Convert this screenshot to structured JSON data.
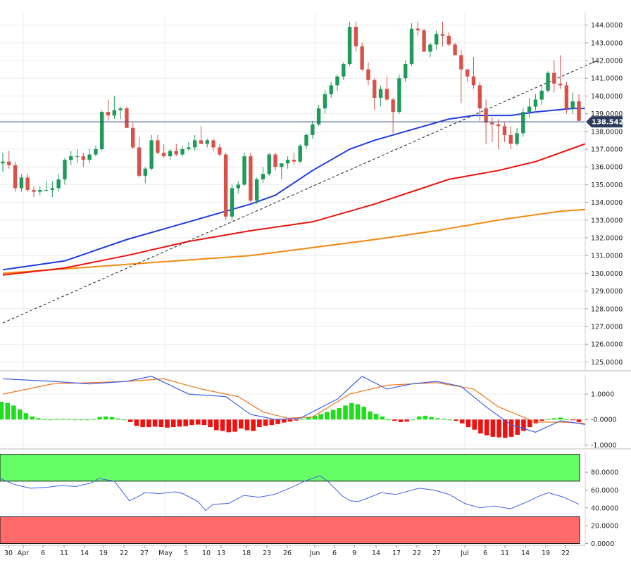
{
  "chart_data": [
    {
      "type": "candlestick",
      "panel": "price",
      "y_axis_ticks": [
        "144.0000",
        "143.0000",
        "142.0000",
        "141.0000",
        "140.0000",
        "139.0000",
        "138.0000",
        "137.0000",
        "136.0000",
        "135.0000",
        "134.0000",
        "133.0000",
        "132.0000",
        "131.0000",
        "130.0000",
        "129.0000",
        "128.0000",
        "127.0000",
        "126.0000",
        "125.0000"
      ],
      "ylim": [
        124.5,
        144.7
      ],
      "last_price_label": "138.5420",
      "last_price": 138.542,
      "colors": {
        "up": "#1e9a5a",
        "down": "#d8524a",
        "sma_fast": "#1f3ddd",
        "sma_mid": "#e8150f",
        "sma_slow": "#f5890f",
        "trendline": "#222222",
        "price_line": "#3a4f8f",
        "price_label_bg": "#2d3b5c"
      },
      "candles": [
        [
          136.2,
          136.8,
          135.7,
          136.3
        ],
        [
          136.3,
          136.9,
          135.9,
          136.1
        ],
        [
          136.1,
          136.3,
          134.6,
          134.8
        ],
        [
          134.8,
          135.6,
          134.6,
          135.4
        ],
        [
          135.4,
          135.6,
          134.6,
          134.7
        ],
        [
          134.7,
          134.9,
          134.3,
          134.6
        ],
        [
          134.6,
          134.9,
          134.4,
          134.7
        ],
        [
          134.7,
          135.2,
          134.6,
          134.7
        ],
        [
          134.7,
          135.2,
          134.3,
          134.8
        ],
        [
          134.8,
          135.6,
          134.6,
          135.3
        ],
        [
          135.3,
          136.5,
          135.0,
          136.4
        ],
        [
          136.4,
          136.9,
          136.1,
          136.6
        ],
        [
          136.6,
          137.0,
          136.2,
          136.6
        ],
        [
          136.6,
          136.8,
          136.0,
          136.4
        ],
        [
          136.4,
          137.0,
          136.2,
          136.7
        ],
        [
          136.7,
          137.2,
          136.6,
          137.0
        ],
        [
          137.0,
          139.2,
          136.9,
          139.1
        ],
        [
          139.1,
          139.8,
          138.6,
          138.9
        ],
        [
          138.9,
          140.0,
          138.7,
          139.2
        ],
        [
          139.2,
          139.4,
          138.7,
          139.3
        ],
        [
          139.3,
          139.4,
          138.4,
          138.2
        ],
        [
          138.2,
          138.5,
          137.0,
          137.1
        ],
        [
          137.1,
          137.7,
          135.4,
          135.5
        ],
        [
          135.5,
          136.0,
          135.1,
          135.9
        ],
        [
          135.9,
          137.8,
          135.8,
          137.5
        ],
        [
          137.5,
          137.8,
          136.7,
          136.8
        ],
        [
          136.8,
          137.3,
          136.5,
          136.6
        ],
        [
          136.6,
          137.0,
          136.4,
          136.9
        ],
        [
          136.9,
          137.3,
          136.6,
          136.7
        ],
        [
          136.7,
          137.2,
          136.6,
          137.0
        ],
        [
          137.0,
          137.4,
          136.9,
          137.1
        ],
        [
          137.1,
          137.8,
          136.9,
          137.5
        ],
        [
          137.5,
          138.3,
          137.3,
          137.3
        ],
        [
          137.3,
          137.6,
          137.1,
          137.5
        ],
        [
          137.5,
          137.6,
          136.9,
          137.1
        ],
        [
          137.1,
          137.3,
          136.6,
          136.7
        ],
        [
          136.7,
          136.8,
          133.0,
          133.2
        ],
        [
          133.2,
          135.0,
          133.0,
          134.8
        ],
        [
          134.8,
          135.2,
          134.5,
          135.0
        ],
        [
          135.0,
          136.8,
          134.9,
          136.6
        ],
        [
          136.6,
          136.8,
          134.0,
          134.1
        ],
        [
          134.1,
          135.4,
          133.9,
          135.3
        ],
        [
          135.3,
          136.0,
          135.1,
          135.6
        ],
        [
          135.6,
          136.8,
          135.5,
          136.7
        ],
        [
          136.7,
          136.8,
          135.8,
          136.0
        ],
        [
          136.0,
          136.2,
          135.3,
          136.2
        ],
        [
          136.2,
          136.6,
          135.9,
          136.4
        ],
        [
          136.4,
          136.8,
          136.1,
          136.3
        ],
        [
          136.3,
          137.3,
          136.2,
          137.2
        ],
        [
          137.2,
          137.9,
          137.0,
          137.8
        ],
        [
          137.8,
          138.6,
          137.6,
          138.4
        ],
        [
          138.4,
          139.5,
          138.3,
          139.3
        ],
        [
          139.3,
          140.3,
          139.0,
          140.1
        ],
        [
          140.1,
          140.8,
          139.9,
          140.6
        ],
        [
          140.6,
          141.2,
          140.3,
          141.1
        ],
        [
          141.1,
          141.9,
          140.9,
          141.8
        ],
        [
          141.8,
          144.2,
          141.7,
          143.9
        ],
        [
          143.9,
          144.2,
          142.5,
          142.8
        ],
        [
          142.8,
          143.0,
          141.4,
          141.5
        ],
        [
          141.5,
          141.9,
          140.6,
          140.9
        ],
        [
          140.9,
          141.0,
          139.2,
          139.9
        ],
        [
          139.9,
          140.6,
          139.4,
          140.4
        ],
        [
          140.4,
          141.1,
          139.7,
          139.8
        ],
        [
          139.8,
          139.9,
          137.9,
          139.1
        ],
        [
          139.1,
          141.2,
          139.0,
          141.0
        ],
        [
          141.0,
          142.0,
          140.8,
          141.8
        ],
        [
          141.8,
          144.1,
          141.7,
          143.8
        ],
        [
          143.8,
          144.2,
          143.4,
          143.7
        ],
        [
          143.7,
          143.8,
          142.7,
          142.5
        ],
        [
          142.5,
          143.0,
          142.2,
          142.9
        ],
        [
          142.9,
          143.7,
          142.6,
          143.5
        ],
        [
          143.5,
          144.2,
          142.8,
          143.4
        ],
        [
          143.4,
          143.6,
          142.8,
          142.9
        ],
        [
          142.9,
          143.0,
          142.3,
          142.3
        ],
        [
          142.3,
          142.6,
          139.6,
          141.5
        ],
        [
          141.5,
          141.5,
          140.8,
          141.1
        ],
        [
          141.1,
          142.2,
          140.4,
          140.6
        ],
        [
          140.6,
          140.8,
          138.6,
          139.3
        ],
        [
          139.3,
          139.8,
          137.3,
          138.5
        ],
        [
          138.5,
          138.8,
          137.4,
          138.4
        ],
        [
          138.4,
          138.7,
          137.0,
          138.3
        ],
        [
          138.3,
          138.5,
          137.4,
          137.8
        ],
        [
          137.8,
          138.3,
          137.0,
          137.3
        ],
        [
          137.3,
          138.2,
          137.2,
          137.9
        ],
        [
          137.9,
          139.3,
          137.7,
          139.1
        ],
        [
          139.1,
          139.9,
          138.8,
          139.4
        ],
        [
          139.4,
          140.1,
          139.2,
          139.8
        ],
        [
          139.8,
          140.6,
          139.5,
          140.3
        ],
        [
          140.3,
          141.4,
          140.2,
          141.3
        ],
        [
          141.3,
          142.0,
          140.2,
          140.7
        ],
        [
          140.7,
          142.3,
          140.4,
          140.6
        ],
        [
          140.6,
          140.8,
          139.0,
          139.3
        ],
        [
          139.3,
          140.2,
          139.0,
          139.7
        ],
        [
          139.7,
          140.1,
          138.6,
          138.6
        ]
      ],
      "sma_fast": [
        [
          0,
          130.2
        ],
        [
          10,
          130.7
        ],
        [
          20,
          131.9
        ],
        [
          30,
          132.9
        ],
        [
          40,
          133.9
        ],
        [
          44,
          134.4
        ],
        [
          50,
          135.8
        ],
        [
          56,
          137.0
        ],
        [
          60,
          137.5
        ],
        [
          66,
          138.1
        ],
        [
          72,
          138.7
        ],
        [
          76,
          138.9
        ],
        [
          82,
          138.9
        ],
        [
          86,
          139.1
        ],
        [
          92,
          139.3
        ],
        [
          94,
          139.3
        ]
      ],
      "sma_mid": [
        [
          0,
          129.9
        ],
        [
          10,
          130.3
        ],
        [
          20,
          131.0
        ],
        [
          30,
          131.8
        ],
        [
          40,
          132.4
        ],
        [
          50,
          132.9
        ],
        [
          60,
          133.9
        ],
        [
          66,
          134.6
        ],
        [
          72,
          135.3
        ],
        [
          80,
          135.8
        ],
        [
          86,
          136.3
        ],
        [
          94,
          137.3
        ]
      ],
      "sma_slow": [
        [
          0,
          130.0
        ],
        [
          20,
          130.5
        ],
        [
          40,
          131.0
        ],
        [
          60,
          131.9
        ],
        [
          70,
          132.4
        ],
        [
          80,
          133.0
        ],
        [
          90,
          133.5
        ],
        [
          94,
          133.6
        ]
      ],
      "trendline": [
        [
          0,
          127.2
        ],
        [
          96,
          142.0
        ]
      ]
    },
    {
      "type": "macd",
      "panel": "macd",
      "y_axis_ticks": [
        "1.0000",
        "-0.0000",
        "-1.0000"
      ],
      "ylim": [
        -1.1,
        1.75
      ],
      "colors": {
        "hist_pos": "#1ee01a",
        "hist_neg": "#ee1111",
        "macd": "#3f5fe8",
        "signal": "#f2761d"
      },
      "macd_line": [
        [
          0,
          1.6
        ],
        [
          8,
          1.5
        ],
        [
          14,
          1.4
        ],
        [
          20,
          1.5
        ],
        [
          24,
          1.7
        ],
        [
          30,
          1.0
        ],
        [
          36,
          0.9
        ],
        [
          40,
          0.2
        ],
        [
          44,
          0.0
        ],
        [
          48,
          0.05
        ],
        [
          54,
          0.8
        ],
        [
          58,
          1.7
        ],
        [
          62,
          1.2
        ],
        [
          66,
          1.4
        ],
        [
          70,
          1.5
        ],
        [
          74,
          1.3
        ],
        [
          78,
          0.5
        ],
        [
          82,
          -0.2
        ],
        [
          86,
          -0.5
        ],
        [
          90,
          -0.05
        ],
        [
          93,
          -0.15
        ],
        [
          94,
          -0.2
        ]
      ],
      "signal_line": [
        [
          0,
          1.0
        ],
        [
          8,
          1.4
        ],
        [
          14,
          1.45
        ],
        [
          20,
          1.5
        ],
        [
          26,
          1.6
        ],
        [
          32,
          1.2
        ],
        [
          38,
          0.9
        ],
        [
          42,
          0.3
        ],
        [
          46,
          0.05
        ],
        [
          50,
          0.1
        ],
        [
          56,
          1.0
        ],
        [
          62,
          1.35
        ],
        [
          70,
          1.45
        ],
        [
          76,
          1.2
        ],
        [
          80,
          0.5
        ],
        [
          86,
          -0.1
        ],
        [
          90,
          -0.1
        ],
        [
          94,
          -0.15
        ]
      ],
      "histogram": [
        0.7,
        0.65,
        0.55,
        0.4,
        0.25,
        0.12,
        0.05,
        0.02,
        0.0,
        0.02,
        0.03,
        0.02,
        0.0,
        0.0,
        0.0,
        0.02,
        0.1,
        0.12,
        0.1,
        0.04,
        0.0,
        -0.1,
        -0.25,
        -0.3,
        -0.3,
        -0.28,
        -0.3,
        -0.32,
        -0.3,
        -0.28,
        -0.26,
        -0.22,
        -0.2,
        -0.22,
        -0.3,
        -0.42,
        -0.45,
        -0.5,
        -0.48,
        -0.35,
        -0.42,
        -0.45,
        -0.3,
        -0.25,
        -0.22,
        -0.18,
        -0.12,
        -0.08,
        -0.04,
        0.02,
        0.08,
        0.15,
        0.22,
        0.3,
        0.38,
        0.45,
        0.55,
        0.65,
        0.6,
        0.5,
        0.32,
        0.22,
        0.12,
        0.0,
        -0.05,
        -0.1,
        -0.08,
        0.0,
        0.12,
        0.15,
        0.1,
        0.05,
        0.03,
        0.0,
        -0.05,
        -0.15,
        -0.3,
        -0.4,
        -0.55,
        -0.62,
        -0.68,
        -0.7,
        -0.72,
        -0.68,
        -0.6,
        -0.45,
        -0.3,
        -0.15,
        -0.05,
        0.02,
        0.05,
        0.08,
        0.02,
        -0.02,
        -0.1
      ]
    },
    {
      "type": "rsi",
      "panel": "rsi",
      "y_axis_ticks": [
        "80.0000",
        "60.0000",
        "40.0000",
        "20.0000",
        "0.0000"
      ],
      "ylim": [
        -2,
        103
      ],
      "colors": {
        "overbought_zone": "#66ff66",
        "oversold_zone": "#ff6b6b",
        "line": "#3f5fe8"
      },
      "overbought": 70,
      "oversold": 30,
      "rsi_line": [
        [
          0,
          73
        ],
        [
          4,
          66
        ],
        [
          8,
          62
        ],
        [
          12,
          63
        ],
        [
          16,
          65
        ],
        [
          20,
          64
        ],
        [
          24,
          68
        ],
        [
          26,
          73
        ],
        [
          30,
          70
        ],
        [
          34,
          48
        ],
        [
          36,
          52
        ],
        [
          38,
          57
        ],
        [
          42,
          56
        ],
        [
          46,
          58
        ],
        [
          48,
          56
        ],
        [
          52,
          47
        ],
        [
          54,
          37
        ],
        [
          56,
          44
        ],
        [
          60,
          45
        ],
        [
          64,
          54
        ],
        [
          68,
          52
        ],
        [
          72,
          55
        ],
        [
          76,
          62
        ],
        [
          80,
          70
        ],
        [
          84,
          76
        ],
        [
          86,
          70
        ],
        [
          90,
          53
        ],
        [
          92,
          48
        ],
        [
          94,
          47
        ],
        [
          96,
          50
        ],
        [
          100,
          57
        ],
        [
          104,
          55
        ],
        [
          110,
          62
        ],
        [
          114,
          60
        ],
        [
          118,
          55
        ],
        [
          122,
          45
        ],
        [
          126,
          40
        ],
        [
          130,
          42
        ],
        [
          134,
          39
        ],
        [
          138,
          46
        ],
        [
          142,
          54
        ],
        [
          144,
          57
        ],
        [
          148,
          52
        ],
        [
          150,
          48
        ],
        [
          152,
          44
        ]
      ]
    }
  ],
  "x_axis": {
    "labels": [
      "30",
      "Apr",
      "6",
      "11",
      "14",
      "19",
      "22",
      "27",
      "May",
      "5",
      "10",
      "13",
      "18",
      "23",
      "26",
      "Jun",
      "6",
      "9",
      "14",
      "17",
      "22",
      "27",
      "Jul",
      "6",
      "11",
      "14",
      "19",
      "22"
    ]
  }
}
